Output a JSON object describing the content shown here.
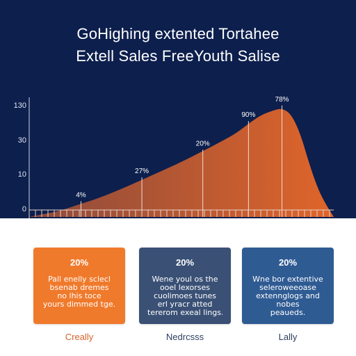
{
  "header": {
    "title_line1": "GoHighing extented Tortahee",
    "title_line2": "Extell Sales FreeYouth Salise"
  },
  "colors": {
    "background": "#0d1f4d",
    "area": "#d8622a",
    "card_orange": "#f07a2c",
    "card_slate": "#3a5075",
    "card_blue": "#2f5b93"
  },
  "chart_data": {
    "type": "area",
    "y_ticks": [
      "0",
      "10",
      "30",
      "130"
    ],
    "annotations": [
      {
        "label": "4%",
        "x": 0.17,
        "y": 0.12
      },
      {
        "label": "27%",
        "x": 0.37,
        "y": 0.32
      },
      {
        "label": "20%",
        "x": 0.57,
        "y": 0.55
      },
      {
        "label": "90%",
        "x": 0.72,
        "y": 0.79
      },
      {
        "label": "78%",
        "x": 0.83,
        "y": 0.92
      }
    ],
    "curve": [
      [
        0.0,
        0.0
      ],
      [
        0.04,
        0.02
      ],
      [
        0.1,
        0.05
      ],
      [
        0.17,
        0.11
      ],
      [
        0.22,
        0.15
      ],
      [
        0.3,
        0.23
      ],
      [
        0.37,
        0.31
      ],
      [
        0.44,
        0.39
      ],
      [
        0.5,
        0.46
      ],
      [
        0.57,
        0.55
      ],
      [
        0.63,
        0.63
      ],
      [
        0.68,
        0.7
      ],
      [
        0.72,
        0.78
      ],
      [
        0.76,
        0.85
      ],
      [
        0.8,
        0.89
      ],
      [
        0.83,
        0.91
      ],
      [
        0.86,
        0.86
      ],
      [
        0.89,
        0.7
      ],
      [
        0.92,
        0.44
      ],
      [
        0.95,
        0.22
      ],
      [
        0.98,
        0.08
      ],
      [
        1.0,
        0.0
      ]
    ]
  },
  "cards": [
    {
      "pct": "20%",
      "lines": [
        "Pall enelly sclecl",
        "bsenab dremes",
        "no lhis toce",
        "yours dimmed tge."
      ]
    },
    {
      "pct": "20%",
      "lines": [
        "Wene youl os the",
        "ooel lexorses",
        "cuolimoes tunes",
        "erl yracr atted",
        "tererom exeal lings."
      ]
    },
    {
      "pct": "20%",
      "lines": [
        "Wne bor extentive",
        "seleroweeoase",
        "extennglogs and",
        "nobes",
        "peaueds."
      ]
    }
  ],
  "bottom_labels": [
    "Creally",
    "Nedrcsss",
    "Lally"
  ]
}
